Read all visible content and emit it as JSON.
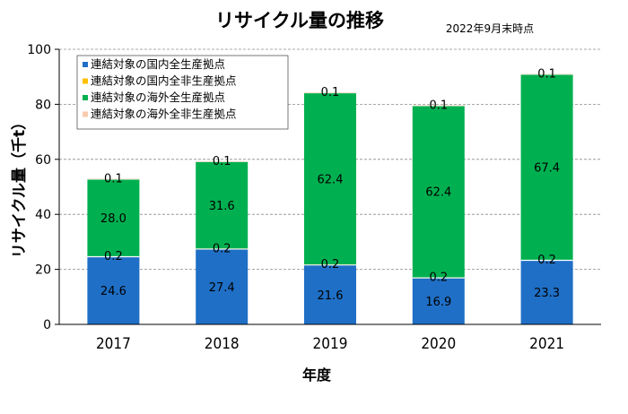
{
  "header": {
    "title": "リサイクル量の推移",
    "note": "2022年9月末時点"
  },
  "chart_data": {
    "type": "bar",
    "stacked": true,
    "xlabel": "年度",
    "ylabel": "リサイクル量（千t）",
    "ylim": [
      0,
      100
    ],
    "yticks": [
      0,
      20,
      40,
      60,
      80,
      100
    ],
    "grid": true,
    "legend_position": "top-left",
    "categories": [
      "2017",
      "2018",
      "2019",
      "2020",
      "2021"
    ],
    "series": [
      {
        "name": "連結対象の国内全生産拠点",
        "color": "#1f6fc6",
        "values": [
          24.6,
          27.4,
          21.6,
          16.9,
          23.3
        ],
        "labels": [
          "24.6",
          "27.4",
          "21.6",
          "16.9",
          "23.3"
        ]
      },
      {
        "name": "連結対象の国内全非生産拠点",
        "color": "#ffc000",
        "values": [
          0.2,
          0.2,
          0.2,
          0.2,
          0.2
        ],
        "labels": [
          "0.2",
          "0.2",
          "0.2",
          "0.2",
          "0.2"
        ]
      },
      {
        "name": "連結対象の海外全生産拠点",
        "color": "#00b050",
        "values": [
          28.0,
          31.6,
          62.4,
          62.4,
          67.4
        ],
        "labels": [
          "28.0",
          "31.6",
          "62.4",
          "62.4",
          "67.4"
        ]
      },
      {
        "name": "連結対象の海外全非生産拠点",
        "color": "#f8cbad",
        "values": [
          0.1,
          0.1,
          0.1,
          0.1,
          0.1
        ],
        "labels": [
          "0.1",
          "0.1",
          "0.1",
          "0.1",
          "0.1"
        ]
      }
    ]
  }
}
